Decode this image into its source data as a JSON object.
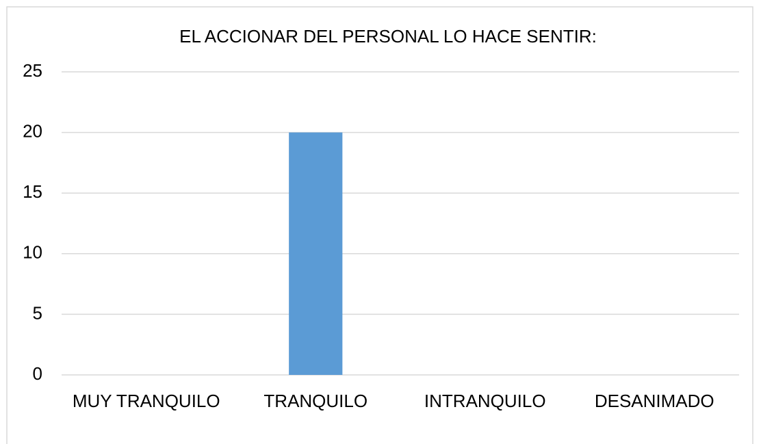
{
  "chart_data": {
    "type": "bar",
    "title": "EL ACCIONAR DEL PERSONAL LO HACE SENTIR:",
    "categories": [
      "MUY TRANQUILO",
      "TRANQUILO",
      "INTRANQUILO",
      "DESANIMADO"
    ],
    "values": [
      0,
      20,
      0,
      0
    ],
    "color": "#5b9bd5",
    "ylim": [
      0,
      25
    ],
    "yticks": [
      0,
      5,
      10,
      15,
      20,
      25
    ],
    "grid": true
  }
}
